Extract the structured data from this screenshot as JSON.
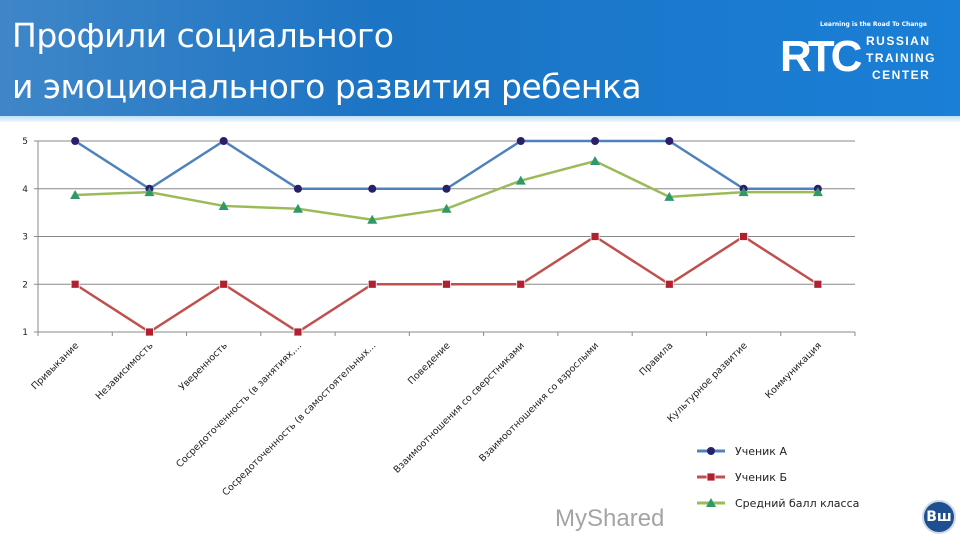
{
  "header": {
    "title_line1": "Профили социального",
    "title_line2": "и эмоционального развития ребенка"
  },
  "logo": {
    "mark": "RTC",
    "tagline": "Learning is the Road To Change",
    "line1": "RUSSIAN",
    "line2": "TRAINING",
    "line3": "CENTER"
  },
  "watermark": "MyShared",
  "hse_logo": "Вш",
  "colors": {
    "header": "#1c74c4",
    "seriesA": "#4f81bd",
    "seriesB": "#c0504d",
    "seriesAvg": "#9bbb59"
  },
  "chart_data": {
    "type": "line",
    "categories": [
      "Привыкание",
      "Независимость",
      "Уверенность",
      "Сосредоточенность (в занятиях,...",
      "Сосредоточенность (в самостоятельных...",
      "Поведение",
      "Взаимоотношения со сверстниками",
      "Взаимоотношения со взрослыми",
      "Правила",
      "Культурное развитие",
      "Коммуникация"
    ],
    "ylim": [
      1,
      5
    ],
    "yticks": [
      1,
      2,
      3,
      4,
      5
    ],
    "grid": true,
    "legend": "bottom-right",
    "series": [
      {
        "name": "Ученик А",
        "values": [
          5,
          4,
          5,
          4,
          4,
          4,
          5,
          5,
          5,
          4,
          4
        ],
        "color": "#4f81bd",
        "marker": "circle"
      },
      {
        "name": "Ученик Б",
        "values": [
          2,
          1,
          2,
          1,
          2,
          2,
          2,
          3,
          2,
          3,
          2
        ],
        "color": "#c0504d",
        "marker": "square"
      },
      {
        "name": "Средний балл класса",
        "values": [
          3.87,
          3.93,
          3.64,
          3.58,
          3.35,
          3.58,
          4.17,
          4.58,
          3.83,
          3.93,
          3.93
        ],
        "color": "#9bbb59",
        "marker": "triangle"
      }
    ]
  }
}
